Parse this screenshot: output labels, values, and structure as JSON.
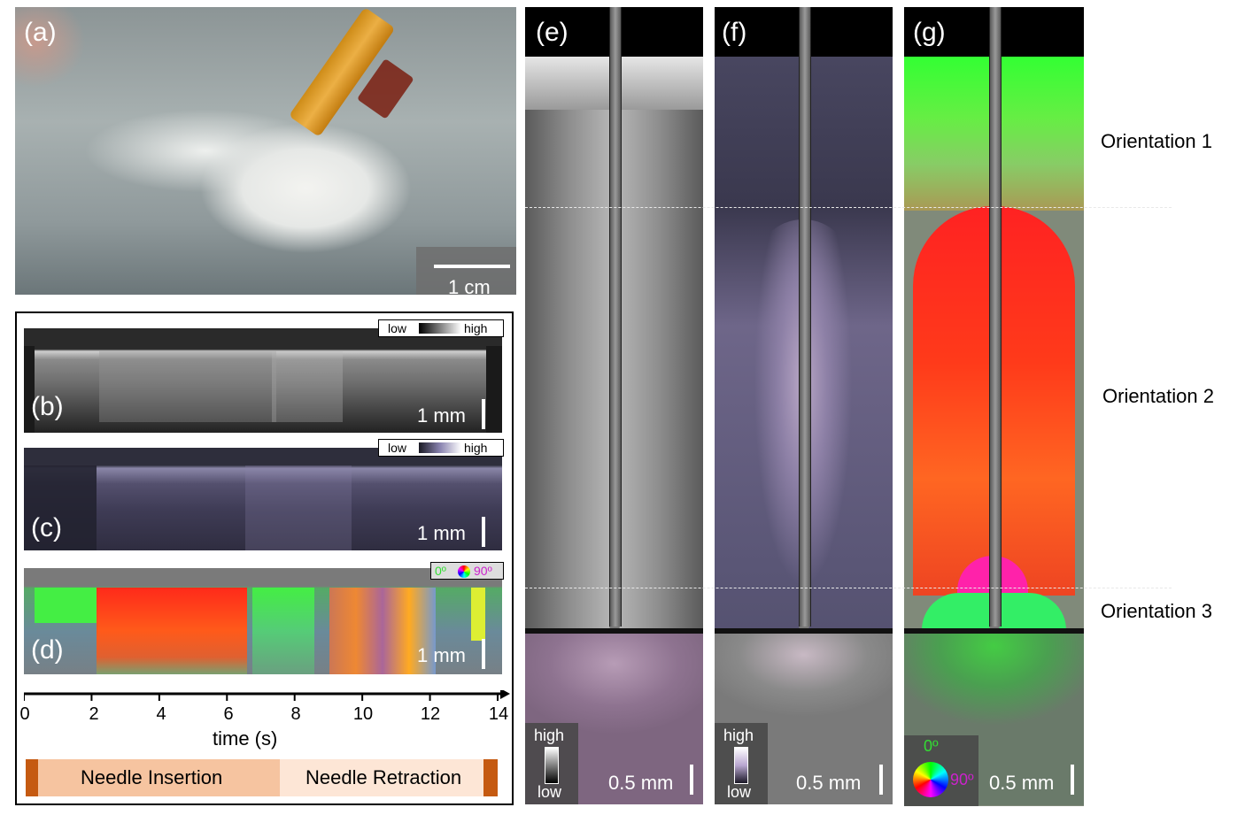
{
  "panels": {
    "a": {
      "label": "(a)",
      "scale": "1 cm"
    },
    "b": {
      "label": "(b)",
      "scale": "1 mm",
      "colorbar": {
        "low": "low",
        "high": "high"
      }
    },
    "c": {
      "label": "(c)",
      "scale": "1 mm",
      "colorbar": {
        "low": "low",
        "high": "high"
      }
    },
    "d": {
      "label": "(d)",
      "scale": "1 mm",
      "colorbar": {
        "low": "0º",
        "high": "90º"
      }
    },
    "e": {
      "label": "(e)",
      "scale": "0.5 mm",
      "legend": {
        "high": "high",
        "low": "low"
      }
    },
    "f": {
      "label": "(f)",
      "scale": "0.5 mm",
      "legend": {
        "high": "high",
        "low": "low"
      }
    },
    "g": {
      "label": "(g)",
      "scale": "0.5 mm",
      "legend": {
        "top": "0º",
        "right": "90º"
      }
    }
  },
  "time_axis": {
    "label": "time (s)",
    "ticks": [
      "0",
      "2",
      "4",
      "6",
      "8",
      "10",
      "12",
      "14"
    ]
  },
  "phases": {
    "insertion": "Needle Insertion",
    "retraction": "Needle Retraction"
  },
  "orientations": [
    "Orientation 1",
    "Orientation 2",
    "Orientation 3"
  ],
  "colors": {
    "insertion": "#f6c4a0",
    "retraction": "#fde6d6",
    "endcap": "#c55a11",
    "hue_0": "#33dd33",
    "hue_90": "#cc22cc"
  }
}
